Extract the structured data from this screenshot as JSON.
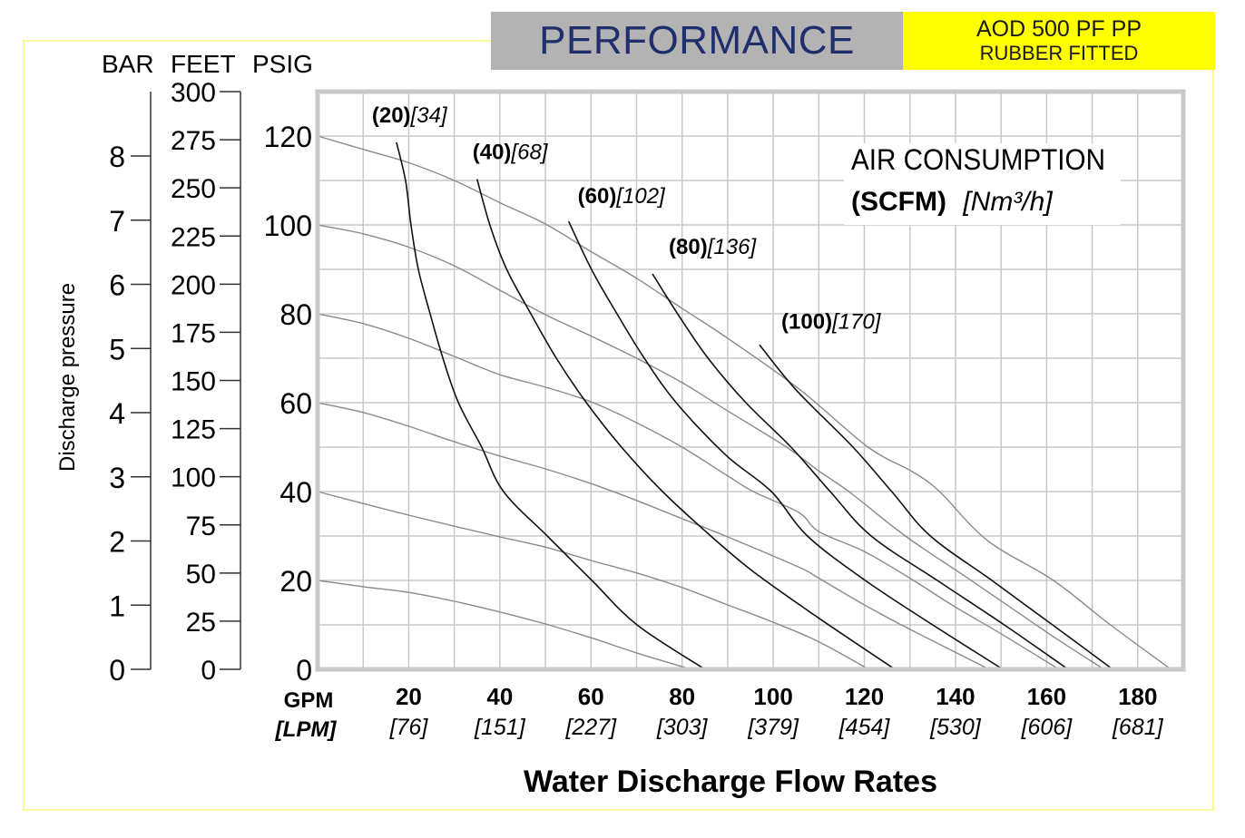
{
  "header": {
    "title": "PERFORMANCE",
    "model": "AOD 500 PF PP",
    "fitting": "RUBBER FITTED",
    "title_color": "#1f2f6e",
    "title_bg": "#b3b3b3",
    "model_bg": "#ffff00"
  },
  "chart_data": {
    "type": "line",
    "title": "PERFORMANCE",
    "xlabel": "Water Discharge Flow Rates",
    "ylabel": "Discharge pressure",
    "x_unit_labels": {
      "primary": "GPM",
      "secondary": "[LPM]"
    },
    "xlim": [
      0,
      190
    ],
    "ylim": [
      0,
      130
    ],
    "grid": true,
    "x_ticks": [
      {
        "gpm": "20",
        "lpm": "[76]"
      },
      {
        "gpm": "40",
        "lpm": "[151]"
      },
      {
        "gpm": "60",
        "lpm": "[227]"
      },
      {
        "gpm": "80",
        "lpm": "[303]"
      },
      {
        "gpm": "100",
        "lpm": "[379]"
      },
      {
        "gpm": "120",
        "lpm": "[454]"
      },
      {
        "gpm": "140",
        "lpm": "[530]"
      },
      {
        "gpm": "160",
        "lpm": "[606]"
      },
      {
        "gpm": "180",
        "lpm": "[681]"
      }
    ],
    "y_axes": {
      "units_header": [
        "BAR",
        "FEET",
        "PSIG"
      ],
      "psig_ticks": [
        "0",
        "20",
        "40",
        "60",
        "80",
        "100",
        "120"
      ],
      "feet_ticks": [
        "0",
        "25",
        "50",
        "75",
        "100",
        "125",
        "150",
        "175",
        "200",
        "225",
        "250",
        "275",
        "300"
      ],
      "bar_ticks": [
        "0",
        "1",
        "2",
        "3",
        "4",
        "5",
        "6",
        "7",
        "8"
      ]
    },
    "legend": {
      "title": "AIR CONSUMPTION",
      "unit_bold": "(SCFM)",
      "unit_italic": "[Nm³/h]",
      "placement": "top-right"
    },
    "pressure_curves": [
      {
        "name": "20 psi",
        "points": [
          [
            0,
            20
          ],
          [
            10,
            18.6
          ],
          [
            20,
            17.3
          ],
          [
            30,
            15.3
          ],
          [
            40,
            12.9
          ],
          [
            50,
            10.2
          ],
          [
            60,
            7.1
          ],
          [
            70,
            3.7
          ],
          [
            82,
            0
          ]
        ]
      },
      {
        "name": "40 psi",
        "points": [
          [
            0,
            40
          ],
          [
            10,
            37.3
          ],
          [
            20,
            34.7
          ],
          [
            30,
            32.2
          ],
          [
            40,
            29.8
          ],
          [
            50,
            27.5
          ],
          [
            60,
            24.5
          ],
          [
            70,
            21.7
          ],
          [
            80,
            18.4
          ],
          [
            90,
            14.5
          ],
          [
            100,
            10.6
          ],
          [
            109.6,
            6.4
          ],
          [
            121,
            0
          ]
        ]
      },
      {
        "name": "60 psi",
        "points": [
          [
            0,
            60
          ],
          [
            10,
            57.8
          ],
          [
            20,
            54.7
          ],
          [
            30,
            51.2
          ],
          [
            40,
            48
          ],
          [
            50,
            45.1
          ],
          [
            60,
            41.8
          ],
          [
            70,
            38
          ],
          [
            80,
            33.9
          ],
          [
            90,
            29.8
          ],
          [
            105.6,
            23
          ],
          [
            110,
            20.5
          ],
          [
            120,
            14.5
          ],
          [
            130,
            9
          ],
          [
            147.4,
            0
          ]
        ]
      },
      {
        "name": "80 psi",
        "points": [
          [
            0,
            80
          ],
          [
            10,
            77.8
          ],
          [
            20,
            74.5
          ],
          [
            30,
            70.4
          ],
          [
            40,
            66.3
          ],
          [
            50,
            63.5
          ],
          [
            60,
            60.2
          ],
          [
            70,
            55.5
          ],
          [
            80,
            50
          ],
          [
            89.6,
            43.8
          ],
          [
            95.6,
            40
          ],
          [
            105.6,
            35.3
          ],
          [
            110,
            31
          ],
          [
            120,
            26.5
          ],
          [
            130,
            20.5
          ],
          [
            140,
            14
          ],
          [
            150,
            8
          ],
          [
            162.7,
            0
          ]
        ]
      },
      {
        "name": "100 psi",
        "points": [
          [
            0,
            100
          ],
          [
            10,
            98
          ],
          [
            20,
            95
          ],
          [
            30,
            90.8
          ],
          [
            40,
            85.3
          ],
          [
            50,
            79.8
          ],
          [
            60,
            75
          ],
          [
            70,
            70
          ],
          [
            80,
            64.5
          ],
          [
            89.6,
            58.4
          ],
          [
            102.9,
            50
          ],
          [
            110.2,
            44.5
          ],
          [
            116.6,
            40
          ],
          [
            129,
            30
          ],
          [
            142,
            21
          ],
          [
            152,
            14
          ],
          [
            162,
            7
          ],
          [
            172.6,
            0
          ]
        ]
      },
      {
        "name": "120 psi",
        "points": [
          [
            0,
            120
          ],
          [
            10,
            117
          ],
          [
            20,
            114
          ],
          [
            30,
            110
          ],
          [
            40,
            105
          ],
          [
            50,
            100.2
          ],
          [
            60,
            94
          ],
          [
            70,
            88
          ],
          [
            80,
            81.2
          ],
          [
            90,
            74.5
          ],
          [
            105.9,
            62.9
          ],
          [
            120.8,
            50
          ],
          [
            130.5,
            44.5
          ],
          [
            136.5,
            40
          ],
          [
            147,
            29
          ],
          [
            161.5,
            20
          ],
          [
            174,
            10
          ],
          [
            187.3,
            0
          ]
        ]
      }
    ],
    "air_curves": [
      {
        "scfm": "(20)",
        "nm3h": "[34]",
        "points": [
          [
            17.3,
            118.6
          ],
          [
            19.3,
            110
          ],
          [
            20.5,
            100
          ],
          [
            22.1,
            90
          ],
          [
            24.7,
            80
          ],
          [
            27.5,
            70
          ],
          [
            30.9,
            60
          ],
          [
            36,
            50
          ],
          [
            40.8,
            40
          ],
          [
            50.4,
            30
          ],
          [
            60.2,
            20
          ],
          [
            70.1,
            10
          ],
          [
            85,
            0
          ]
        ]
      },
      {
        "scfm": "(40)",
        "nm3h": "[68]",
        "points": [
          [
            35,
            110.3
          ],
          [
            37.8,
            100
          ],
          [
            41.5,
            90
          ],
          [
            46.8,
            80
          ],
          [
            52.4,
            70
          ],
          [
            59,
            60
          ],
          [
            66.7,
            50
          ],
          [
            75.7,
            40
          ],
          [
            86.3,
            30
          ],
          [
            95.6,
            22
          ],
          [
            109.6,
            11.8
          ],
          [
            126.7,
            0
          ]
        ]
      },
      {
        "scfm": "(60)",
        "nm3h": "[102]",
        "points": [
          [
            55.1,
            100.8
          ],
          [
            60.1,
            90
          ],
          [
            65.7,
            80
          ],
          [
            71.7,
            70
          ],
          [
            78.7,
            60
          ],
          [
            89.6,
            48.2
          ],
          [
            99.6,
            40
          ],
          [
            107.5,
            30
          ],
          [
            120.2,
            20
          ],
          [
            135,
            10
          ],
          [
            150.4,
            0
          ]
        ]
      },
      {
        "scfm": "(80)",
        "nm3h": "[136]",
        "points": [
          [
            73.5,
            89
          ],
          [
            79,
            80
          ],
          [
            85.7,
            70
          ],
          [
            94,
            60
          ],
          [
            103.9,
            50
          ],
          [
            112.5,
            40
          ],
          [
            121.5,
            30
          ],
          [
            136,
            20
          ],
          [
            150.7,
            10
          ],
          [
            164.7,
            0
          ]
        ]
      },
      {
        "scfm": "(100)",
        "nm3h": "[170]",
        "points": [
          [
            97,
            73
          ],
          [
            105,
            62.9
          ],
          [
            117.5,
            50
          ],
          [
            126,
            40
          ],
          [
            134.5,
            30
          ],
          [
            148,
            20
          ],
          [
            161.3,
            10
          ],
          [
            174.5,
            0
          ]
        ]
      }
    ]
  }
}
